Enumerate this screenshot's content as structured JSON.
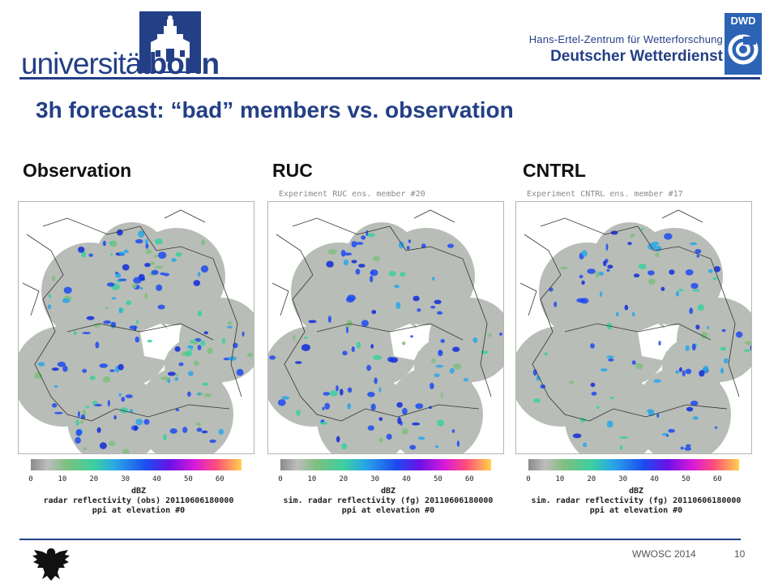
{
  "header": {
    "university_logo": {
      "prefix": "universität",
      "suffix": "bonn"
    },
    "dwd": {
      "badge": "DWD",
      "line1": "Hans-Ertel-Zentrum für Wetterforschung",
      "line2": "Deutscher Wetterdienst"
    }
  },
  "title": "3h forecast: “bad” members vs. observation",
  "panels": [
    {
      "label": "Observation",
      "experiment": "",
      "unit": "dBZ",
      "description": "radar reflectivity (obs) 20110606180000",
      "elevation": "ppi at elevation #0"
    },
    {
      "label": "RUC",
      "experiment": "Experiment RUC ens. member #20",
      "unit": "dBZ",
      "description": "sim. radar reflectivity (fg) 20110606180000",
      "elevation": "ppi at elevation #0"
    },
    {
      "label": "CNTRL",
      "experiment": "Experiment CNTRL ens. member #17",
      "unit": "dBZ",
      "description": "sim. radar reflectivity (fg) 20110606180000",
      "elevation": "ppi at elevation #0"
    }
  ],
  "colorbar": {
    "ticks": [
      "0",
      "10",
      "20",
      "30",
      "40",
      "50",
      "60"
    ],
    "colors": [
      "#8c8c8c",
      "#bdbdbd",
      "#7fbf7f",
      "#3ccfa0",
      "#2aa7e6",
      "#1c4bf0",
      "#6a12e8",
      "#d81ad8",
      "#ff4d7d",
      "#ffd24a"
    ]
  },
  "footer": {
    "event": "WWOSC 2014",
    "page": "10"
  },
  "colors": {
    "brand_blue": "#233f86",
    "radar_circle": "#b9bdb8",
    "dwd_blue": "#2d63b4"
  }
}
